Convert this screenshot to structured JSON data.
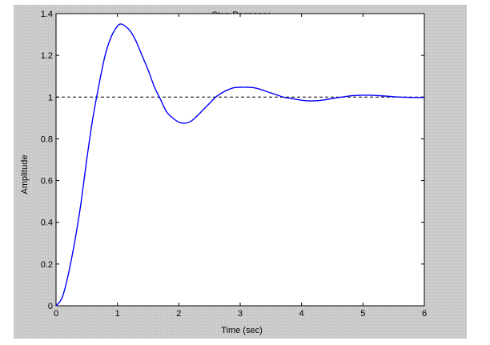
{
  "chart_data": {
    "type": "line",
    "title": "Step Response",
    "xlabel": "Time (sec)",
    "ylabel": "Amplitude",
    "xlim": [
      0,
      6
    ],
    "ylim": [
      0,
      1.4
    ],
    "x_ticks": [
      0,
      1,
      2,
      3,
      4,
      5,
      6
    ],
    "y_ticks": [
      0,
      0.2,
      0.4,
      0.6,
      0.8,
      1,
      1.2,
      1.4
    ],
    "grid": false,
    "reference_line": {
      "y": 1,
      "style": "dashed",
      "color": "#000000"
    },
    "series": [
      {
        "color": "#0000ff",
        "points": [
          [
            0,
            0
          ],
          [
            0.1,
            0.04
          ],
          [
            0.2,
            0.15
          ],
          [
            0.3,
            0.3
          ],
          [
            0.4,
            0.48
          ],
          [
            0.5,
            0.7
          ],
          [
            0.6,
            0.9
          ],
          [
            0.7,
            1.06
          ],
          [
            0.8,
            1.2
          ],
          [
            0.9,
            1.29
          ],
          [
            1.0,
            1.34
          ],
          [
            1.05,
            1.35
          ],
          [
            1.1,
            1.345
          ],
          [
            1.2,
            1.32
          ],
          [
            1.3,
            1.27
          ],
          [
            1.4,
            1.2
          ],
          [
            1.5,
            1.13
          ],
          [
            1.6,
            1.05
          ],
          [
            1.7,
            0.99
          ],
          [
            1.8,
            0.93
          ],
          [
            1.9,
            0.9
          ],
          [
            2.0,
            0.88
          ],
          [
            2.1,
            0.875
          ],
          [
            2.2,
            0.885
          ],
          [
            2.3,
            0.91
          ],
          [
            2.4,
            0.94
          ],
          [
            2.5,
            0.97
          ],
          [
            2.6,
            1.0
          ],
          [
            2.7,
            1.02
          ],
          [
            2.8,
            1.035
          ],
          [
            2.9,
            1.045
          ],
          [
            3.0,
            1.047
          ],
          [
            3.1,
            1.047
          ],
          [
            3.2,
            1.046
          ],
          [
            3.3,
            1.04
          ],
          [
            3.4,
            1.03
          ],
          [
            3.5,
            1.02
          ],
          [
            3.6,
            1.01
          ],
          [
            3.7,
            1.0
          ],
          [
            3.8,
            0.995
          ],
          [
            3.9,
            0.99
          ],
          [
            4.0,
            0.985
          ],
          [
            4.1,
            0.982
          ],
          [
            4.2,
            0.982
          ],
          [
            4.3,
            0.984
          ],
          [
            4.4,
            0.988
          ],
          [
            4.5,
            0.993
          ],
          [
            4.6,
            0.998
          ],
          [
            4.7,
            1.002
          ],
          [
            4.8,
            1.006
          ],
          [
            4.9,
            1.008
          ],
          [
            5.0,
            1.009
          ],
          [
            5.1,
            1.009
          ],
          [
            5.2,
            1.008
          ],
          [
            5.3,
            1.006
          ],
          [
            5.4,
            1.004
          ],
          [
            5.5,
            1.002
          ],
          [
            5.6,
            1.0
          ],
          [
            5.7,
            0.999
          ],
          [
            5.8,
            0.998
          ],
          [
            5.9,
            0.998
          ],
          [
            6.0,
            0.998
          ]
        ]
      }
    ]
  }
}
